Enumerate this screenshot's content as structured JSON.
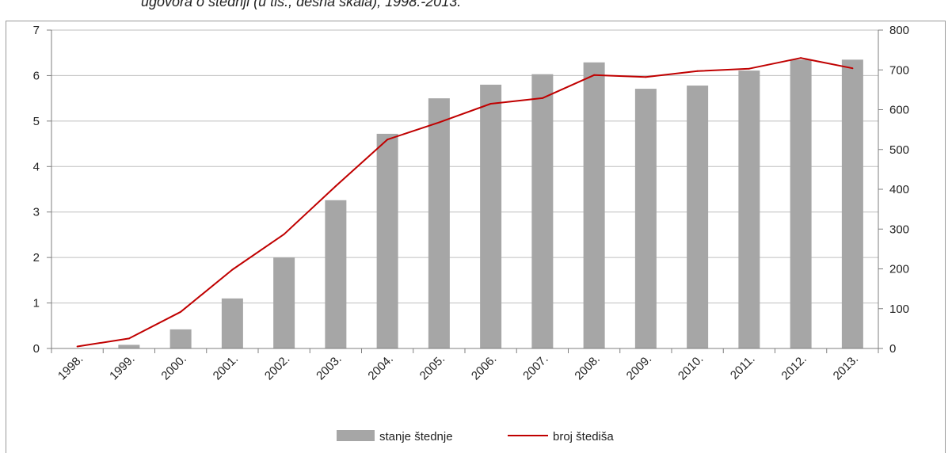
{
  "chart_data": {
    "type": "bar",
    "title": "ugovora o štednji (u tis., desna skala), 1998.-2013.",
    "categories": [
      "1998.",
      "1999.",
      "2000.",
      "2001.",
      "2002.",
      "2003.",
      "2004.",
      "2005.",
      "2006.",
      "2007.",
      "2008.",
      "2009.",
      "2010.",
      "2011.",
      "2012.",
      "2013."
    ],
    "ylim_left": [
      0,
      7
    ],
    "yticks_left": [
      "0",
      "1",
      "2",
      "3",
      "4",
      "5",
      "6",
      "7"
    ],
    "ylim_right": [
      0,
      800
    ],
    "yticks_right": [
      "0",
      "100",
      "200",
      "300",
      "400",
      "500",
      "600",
      "700",
      "800"
    ],
    "grid": true,
    "legend_position": "bottom",
    "series": [
      {
        "name": "stanje štednje",
        "type": "bar",
        "axis": "left",
        "color": "#a6a6a6",
        "values": [
          0.0,
          0.08,
          0.42,
          1.1,
          2.0,
          3.26,
          4.72,
          5.5,
          5.8,
          6.03,
          6.29,
          5.71,
          5.78,
          6.11,
          6.35,
          6.35
        ]
      },
      {
        "name": "broj štediša",
        "type": "line",
        "axis": "right",
        "color": "#c00000",
        "values": [
          5,
          25,
          92,
          198,
          287,
          408,
          525,
          568,
          615,
          629,
          687,
          682,
          697,
          703,
          730,
          704
        ]
      }
    ]
  }
}
